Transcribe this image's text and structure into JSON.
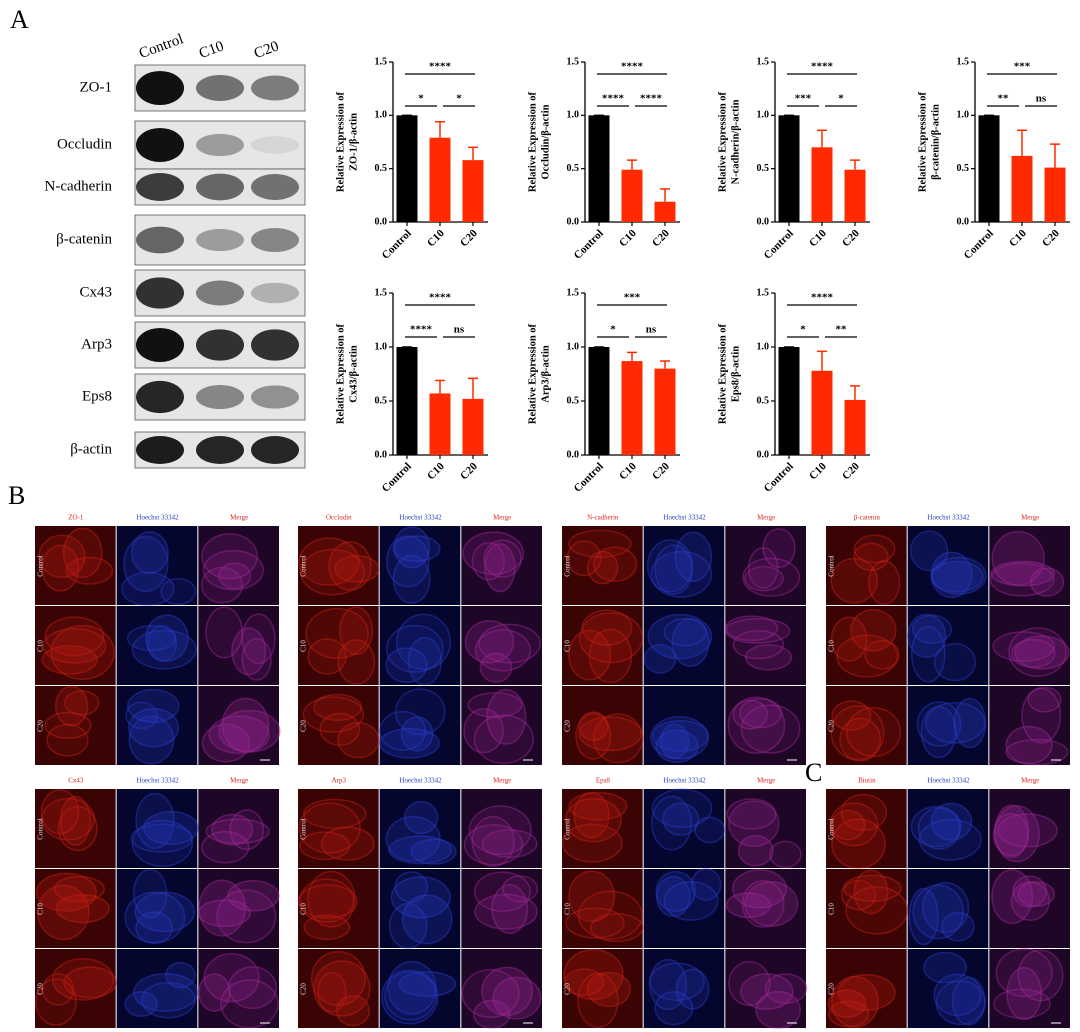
{
  "panel_labels": [
    "A",
    "B",
    "C"
  ],
  "blot": {
    "columns": [
      "Control",
      "C10",
      "C20"
    ],
    "rows": [
      "ZO-1",
      "Occludin",
      "N-cadherin",
      "β-catenin",
      "Cx43",
      "Arp3",
      "Eps8",
      "β-actin"
    ]
  },
  "chart_data": [
    {
      "type": "bar",
      "y_label": [
        "Relative Expression of",
        "ZO-1/β-actin"
      ],
      "categories": [
        "Control",
        "C10",
        "C20"
      ],
      "values": [
        1,
        0.79,
        0.58
      ],
      "errors": [
        0,
        0.15,
        0.12
      ],
      "colors": [
        "#000000",
        "#ff2a00",
        "#ff2a00"
      ],
      "ylim": [
        0,
        1.5
      ],
      "yticks": [
        {
          "value": 0,
          "label": "0.0"
        },
        0.5,
        {
          "value": 1,
          "label": "1.0"
        },
        1.5
      ],
      "annotations": [
        "****",
        "*",
        "*"
      ]
    },
    {
      "type": "bar",
      "y_label": [
        "Relative Expression of",
        "Occludin/β-actin"
      ],
      "categories": [
        "Control",
        "C10",
        "C20"
      ],
      "values": [
        1,
        0.49,
        0.19
      ],
      "errors": [
        0,
        0.09,
        0.12
      ],
      "colors": [
        "#000000",
        "#ff2a00",
        "#ff2a00"
      ],
      "ylim": [
        0,
        1.5
      ],
      "yticks": [
        {
          "value": 0,
          "label": "0.0"
        },
        0.5,
        {
          "value": 1,
          "label": "1.0"
        },
        1.5
      ],
      "annotations": [
        "****",
        "****",
        "****"
      ]
    },
    {
      "type": "bar",
      "y_label": [
        "Relative Expression of",
        "N-cadherin/β-actin"
      ],
      "categories": [
        "Control",
        "C10",
        "C20"
      ],
      "values": [
        1,
        0.7,
        0.49
      ],
      "errors": [
        0,
        0.16,
        0.09
      ],
      "colors": [
        "#000000",
        "#ff2a00",
        "#ff2a00"
      ],
      "ylim": [
        0,
        1.5
      ],
      "yticks": [
        {
          "value": 0,
          "label": "0.0"
        },
        0.5,
        {
          "value": 1,
          "label": "1.0"
        },
        1.5
      ],
      "annotations": [
        "****",
        "***",
        "*"
      ]
    },
    {
      "type": "bar",
      "y_label": [
        "Relative Expression of",
        "β-catenin/β-actin"
      ],
      "categories": [
        "Control",
        "C10",
        "C20"
      ],
      "values": [
        1,
        0.62,
        0.51
      ],
      "errors": [
        0,
        0.24,
        0.22
      ],
      "colors": [
        "#000000",
        "#ff2a00",
        "#ff2a00"
      ],
      "ylim": [
        0,
        1.5
      ],
      "yticks": [
        {
          "value": 0,
          "label": "0.0"
        },
        0.5,
        {
          "value": 1,
          "label": "1.0"
        },
        1.5
      ],
      "annotations": [
        "***",
        "**",
        "ns"
      ]
    },
    {
      "type": "bar",
      "y_label": [
        "Relative Expression of",
        "Cx43/β-actin"
      ],
      "categories": [
        "Control",
        "C10",
        "C20"
      ],
      "values": [
        1,
        0.57,
        0.52
      ],
      "errors": [
        0,
        0.12,
        0.19
      ],
      "colors": [
        "#000000",
        "#ff2a00",
        "#ff2a00"
      ],
      "ylim": [
        0,
        1.5
      ],
      "yticks": [
        {
          "value": 0,
          "label": "0.0"
        },
        0.5,
        {
          "value": 1,
          "label": "1.0"
        },
        1.5
      ],
      "annotations": [
        "****",
        "****",
        "ns"
      ]
    },
    {
      "type": "bar",
      "y_label": [
        "Relative Expression of",
        "Arp3/β-actin"
      ],
      "categories": [
        "Control",
        "C10",
        "C20"
      ],
      "values": [
        1,
        0.87,
        0.8
      ],
      "errors": [
        0,
        0.08,
        0.07
      ],
      "colors": [
        "#000000",
        "#ff2a00",
        "#ff2a00"
      ],
      "ylim": [
        0,
        1.5
      ],
      "yticks": [
        {
          "value": 0,
          "label": "0.0"
        },
        0.5,
        {
          "value": 1,
          "label": "1.0"
        },
        1.5
      ],
      "annotations": [
        "***",
        "*",
        "ns"
      ]
    },
    {
      "type": "bar",
      "y_label": [
        "Relative Expression of",
        "Eps8/β-actin"
      ],
      "categories": [
        "Control",
        "C10",
        "C20"
      ],
      "values": [
        1,
        0.78,
        0.51
      ],
      "errors": [
        0,
        0.18,
        0.13
      ],
      "colors": [
        "#000000",
        "#ff2a00",
        "#ff2a00"
      ],
      "ylim": [
        0,
        1.5
      ],
      "yticks": [
        {
          "value": 0,
          "label": "0.0"
        },
        0.5,
        {
          "value": 1,
          "label": "1.0"
        },
        1.5
      ],
      "annotations": [
        "****",
        "*",
        "**"
      ]
    }
  ],
  "imaging": [
    {
      "columns": [
        "ZO-1",
        "Hoechst 33342",
        "Merge"
      ],
      "rows": [
        "Control",
        "C10",
        "C20"
      ]
    },
    {
      "columns": [
        "Occludin",
        "Hoechst 33342",
        "Merge"
      ],
      "rows": [
        "Control",
        "C10",
        "C20"
      ]
    },
    {
      "columns": [
        "N-cadherin",
        "Hoechst 33342",
        "Merge"
      ],
      "rows": [
        "Control",
        "C10",
        "C20"
      ]
    },
    {
      "columns": [
        "β-catenin",
        "Hoechst 33342",
        "Merge"
      ],
      "rows": [
        "Control",
        "C10",
        "C20"
      ]
    },
    {
      "columns": [
        "Cx43",
        "Hoechst 33342",
        "Merge"
      ],
      "rows": [
        "Control",
        "C10",
        "C20"
      ]
    },
    {
      "columns": [
        "Arp3",
        "Hoechst 33342",
        "Merge"
      ],
      "rows": [
        "Control",
        "C10",
        "C20"
      ]
    },
    {
      "columns": [
        "Eps8",
        "Hoechst 33342",
        "Merge"
      ],
      "rows": [
        "Control",
        "C10",
        "C20"
      ]
    },
    {
      "columns": [
        "Biotin",
        "Hoechst 33342",
        "Merge"
      ],
      "rows": [
        "Control",
        "C10",
        "C20"
      ]
    }
  ]
}
